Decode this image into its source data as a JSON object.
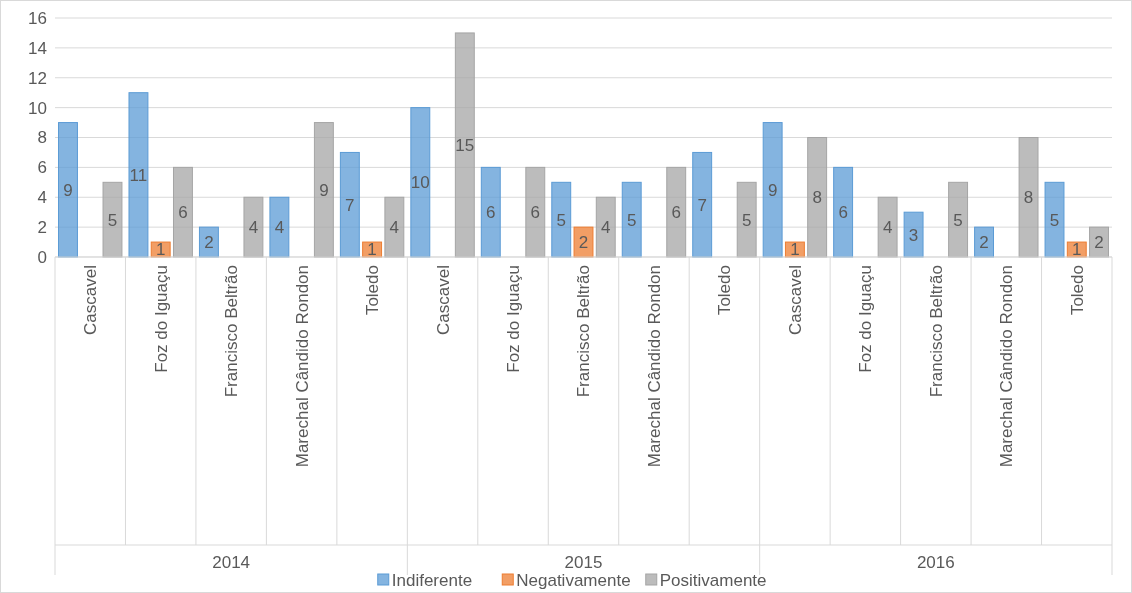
{
  "chart_data": {
    "type": "bar",
    "categories": [
      "Cascavel",
      "Foz do Iguaçu",
      "Francisco Beltrão",
      "Marechal Cândido Rondon",
      "Toledo",
      "Cascavel",
      "Foz do Iguaçu",
      "Francisco Beltrão",
      "Marechal Cândido Rondon",
      "Toledo",
      "Cascavel",
      "Foz do Iguaçu",
      "Francisco Beltrão",
      "Marechal Cândido Rondon",
      "Toledo"
    ],
    "annotations": [
      "2014",
      "2015",
      "2016"
    ],
    "series": [
      {
        "name": "Indiferente",
        "color": "#5b9bd5",
        "values": [
          9,
          11,
          2,
          4,
          7,
          10,
          6,
          5,
          5,
          7,
          9,
          6,
          3,
          2,
          5
        ]
      },
      {
        "name": "Negativamente",
        "color": "#ed7d31",
        "values": [
          null,
          1,
          null,
          null,
          1,
          null,
          null,
          2,
          null,
          null,
          1,
          null,
          null,
          null,
          1
        ]
      },
      {
        "name": "Positivamente",
        "color": "#a5a5a5",
        "values": [
          5,
          6,
          4,
          9,
          4,
          15,
          6,
          4,
          6,
          5,
          8,
          4,
          5,
          8,
          2
        ]
      }
    ],
    "ylim": [
      0,
      16
    ],
    "yticks": [
      0,
      2,
      4,
      6,
      8,
      10,
      12,
      14,
      16
    ],
    "grid": "y",
    "data_labels": true,
    "legend": "bottom"
  }
}
